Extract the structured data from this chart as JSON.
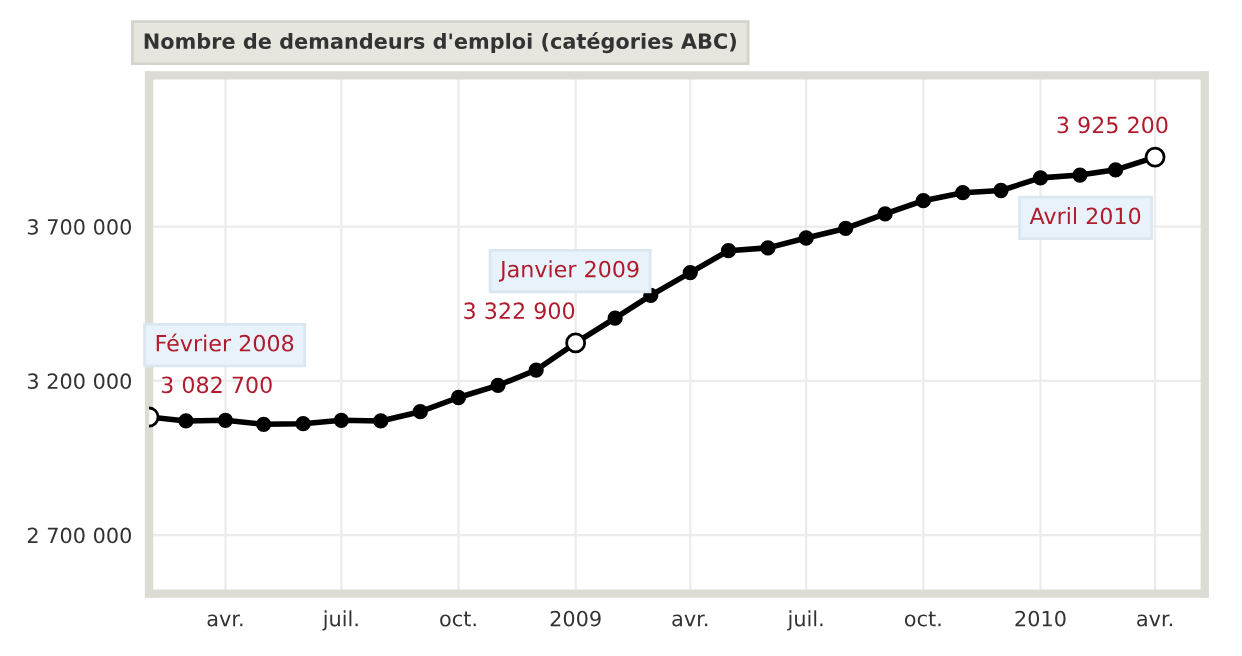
{
  "chart_data": {
    "type": "line",
    "title": "Nombre de demandeurs d'emploi (catégories ABC)",
    "x": [
      "2008-02",
      "2008-03",
      "2008-04",
      "2008-05",
      "2008-06",
      "2008-07",
      "2008-08",
      "2008-09",
      "2008-10",
      "2008-11",
      "2008-12",
      "2009-01",
      "2009-02",
      "2009-03",
      "2009-04",
      "2009-05",
      "2009-06",
      "2009-07",
      "2009-08",
      "2009-09",
      "2009-10",
      "2009-11",
      "2009-12",
      "2010-01",
      "2010-02",
      "2010-03",
      "2010-04"
    ],
    "series": [
      {
        "color": "#000000",
        "values": [
          3082700,
          3070000,
          3072000,
          3059000,
          3061000,
          3072000,
          3070000,
          3100000,
          3146000,
          3185000,
          3235000,
          3322900,
          3403000,
          3477000,
          3551000,
          3622000,
          3631000,
          3663000,
          3694000,
          3741000,
          3784000,
          3810000,
          3817000,
          3858000,
          3867000,
          3884000,
          3925200
        ],
        "value_labels": [
          "3 082 700",
          null,
          null,
          null,
          null,
          null,
          null,
          null,
          null,
          null,
          null,
          "3 322 900",
          null,
          null,
          null,
          null,
          null,
          null,
          null,
          null,
          null,
          null,
          null,
          null,
          null,
          null,
          "3 925 200"
        ]
      }
    ],
    "xlim": [
      "2008-02-01",
      "2010-05-10"
    ],
    "xticks": [
      {
        "value": "2008-04",
        "label": "avr."
      },
      {
        "value": "2008-07",
        "label": "juil."
      },
      {
        "value": "2008-10",
        "label": "oct."
      },
      {
        "value": "2009-01",
        "label": "2009"
      },
      {
        "value": "2009-04",
        "label": "avr."
      },
      {
        "value": "2009-07",
        "label": "juil."
      },
      {
        "value": "2009-10",
        "label": "oct."
      },
      {
        "value": "2010-01",
        "label": "2010"
      },
      {
        "value": "2010-04",
        "label": "avr."
      }
    ],
    "ylim": [
      2510000,
      4190000
    ],
    "yticks": [
      {
        "value": 2700000,
        "label": "2 700 000"
      },
      {
        "value": 3200000,
        "label": "3 200 000"
      },
      {
        "value": 3700000,
        "label": "3 700 000"
      }
    ],
    "grid": true,
    "marker": "circle",
    "line_style": "solid",
    "legend": false,
    "annotations": [
      {
        "text": "Février 2008",
        "x": "2008-02",
        "y": 3082700
      },
      {
        "text": "Janvier 2009",
        "x": "2009-01",
        "y": 3322900
      },
      {
        "text": "Avril 2010",
        "x": "2010-04",
        "y": 3925200
      }
    ]
  }
}
